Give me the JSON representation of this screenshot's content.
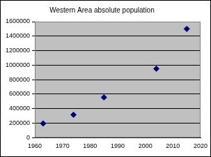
{
  "chart_data": {
    "type": "scatter",
    "title": "Western Area absolute population",
    "x": [
      1963,
      1974,
      1985,
      2004,
      2015
    ],
    "values": [
      195000,
      315000,
      555000,
      950000,
      1500000
    ],
    "color": "#000080",
    "marker": "diamond",
    "xlim": [
      1960,
      2020
    ],
    "xticks": [
      1960,
      1970,
      1980,
      1990,
      2000,
      2010,
      2020
    ],
    "ylim": [
      0,
      1600000
    ],
    "yticks": [
      0,
      200000,
      400000,
      600000,
      800000,
      1000000,
      1200000,
      1400000,
      1600000
    ],
    "grid": true
  }
}
